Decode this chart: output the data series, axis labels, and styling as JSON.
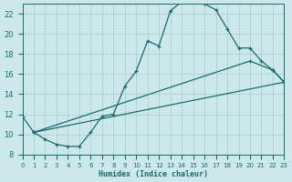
{
  "background_color": "#cce8ea",
  "grid_color": "#aacfd4",
  "line_color": "#1a6b6b",
  "xlabel": "Humidex (Indice chaleur)",
  "xlim": [
    0,
    23
  ],
  "ylim": [
    8,
    23
  ],
  "xticks": [
    0,
    1,
    2,
    3,
    4,
    5,
    6,
    7,
    8,
    9,
    10,
    11,
    12,
    13,
    14,
    15,
    16,
    17,
    18,
    19,
    20,
    21,
    22,
    23
  ],
  "yticks": [
    8,
    10,
    12,
    14,
    16,
    18,
    20,
    22
  ],
  "curve_main_x": [
    0,
    1,
    2,
    3,
    4,
    5,
    6,
    7,
    8,
    9,
    10,
    11,
    12,
    13,
    14,
    15,
    16,
    17,
    18,
    19,
    20,
    21,
    22,
    23
  ],
  "curve_main_y": [
    11.8,
    10.2,
    9.5,
    9.0,
    8.8,
    8.8,
    10.2,
    11.8,
    12.0,
    14.8,
    16.3,
    19.3,
    18.8,
    22.3,
    23.2,
    23.5,
    23.0,
    22.4,
    20.5,
    18.6,
    18.6,
    17.3,
    16.4,
    15.2
  ],
  "curve2_x": [
    1,
    20,
    22,
    23
  ],
  "curve2_y": [
    10.2,
    17.3,
    16.4,
    15.2
  ],
  "curve3_x": [
    1,
    23
  ],
  "curve3_y": [
    10.2,
    15.2
  ]
}
